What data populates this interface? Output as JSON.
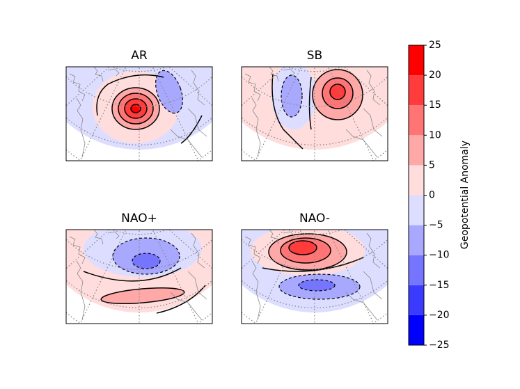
{
  "chart_data": {
    "type": "contour",
    "panels": [
      {
        "title": "AR"
      },
      {
        "title": "SB"
      },
      {
        "title": "NAO+"
      },
      {
        "title": "NAO-"
      }
    ],
    "colorbar": {
      "label": "Geopotential Anomaly",
      "lim": [
        -25,
        25
      ],
      "ticks": [
        {
          "value": -25,
          "label": "−25"
        },
        {
          "value": -20,
          "label": "−20"
        },
        {
          "value": -15,
          "label": "−15"
        },
        {
          "value": -10,
          "label": "−10"
        },
        {
          "value": -5,
          "label": "−5"
        },
        0,
        5,
        10,
        15,
        20,
        25
      ],
      "colors": [
        "#0000ff",
        "#3b3bff",
        "#7575ff",
        "#a8a8ff",
        "#dddeff",
        "#ffdddd",
        "#ffa8a8",
        "#ff7575",
        "#ff3b3b",
        "#ff0000"
      ]
    }
  }
}
